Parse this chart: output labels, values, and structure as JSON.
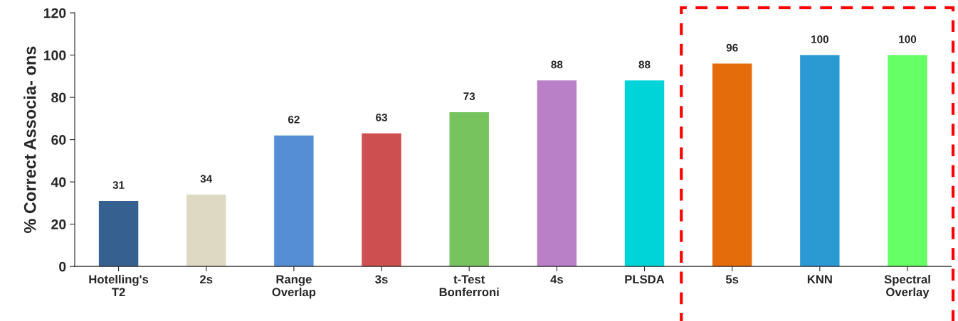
{
  "chart_data": {
    "type": "bar",
    "ylabel": "% Correct Associa- ons",
    "categories": [
      "Hotelling's\nT2",
      "2s",
      "Range\nOverlap",
      "3s",
      "t-Test\nBonferroni",
      "4s",
      "PLSDA",
      "5s",
      "KNN",
      "Spectral\nOverlay"
    ],
    "values": [
      31,
      34,
      62,
      63,
      73,
      88,
      88,
      96,
      100,
      100
    ],
    "colors": [
      "#35608f",
      "#ddd9c3",
      "#558ed5",
      "#cd4f4f",
      "#77c35e",
      "#b97fc7",
      "#00d4d8",
      "#e46c0a",
      "#2b9ad3",
      "#66ff66"
    ],
    "ylim": [
      0,
      120
    ],
    "yticks": [
      0,
      20,
      40,
      60,
      80,
      100,
      120
    ],
    "grid": false,
    "data_labels": true
  }
}
